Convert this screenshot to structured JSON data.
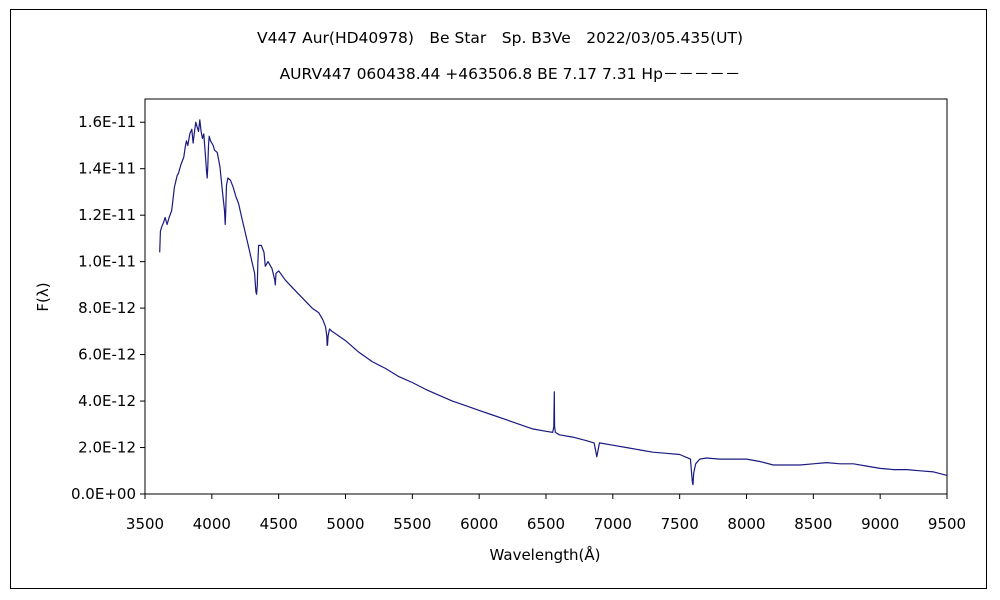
{
  "chart_data": {
    "type": "line",
    "title": "V447 Aur(HD40978)　Be Star　Sp. B3Ve　2022/03/05.435(UT)",
    "subtitle": "AURV447 060438.44 +463506.8 BE 7.17 7.31 Hp－－－－－",
    "xlabel": "Wavelength(Å)",
    "ylabel": "F(λ)",
    "xlim": [
      3500,
      9500
    ],
    "ylim": [
      0,
      1.7e-11
    ],
    "x_ticks": [
      3500,
      4000,
      4500,
      5000,
      5500,
      6000,
      6500,
      7000,
      7500,
      8000,
      8500,
      9000,
      9500
    ],
    "x_tick_labels": [
      "3500",
      "4000",
      "4500",
      "5000",
      "5500",
      "6000",
      "6500",
      "7000",
      "7500",
      "8000",
      "8500",
      "9000",
      "9500"
    ],
    "y_ticks": [
      0,
      2e-12,
      4e-12,
      6e-12,
      8e-12,
      1e-11,
      1.2e-11,
      1.4e-11,
      1.6e-11
    ],
    "y_tick_labels": [
      "0.0E+00",
      "2.0E-12",
      "4.0E-12",
      "6.0E-12",
      "8.0E-12",
      "1.0E-11",
      "1.2E-11",
      "1.4E-11",
      "1.6E-11"
    ],
    "grid": false,
    "legend": "none",
    "line_color": "#1a1a80",
    "series": [
      {
        "x": [
          3610,
          3615,
          3625,
          3640,
          3650,
          3665,
          3680,
          3700,
          3720,
          3740,
          3750,
          3770,
          3790,
          3800,
          3810,
          3820,
          3835,
          3850,
          3860,
          3870,
          3880,
          3890,
          3900,
          3910,
          3920,
          3930,
          3940,
          3950,
          3960,
          3965,
          3970,
          3975,
          3980,
          3990,
          4000,
          4010,
          4020,
          4040,
          4060,
          4080,
          4095,
          4100,
          4103,
          4110,
          4120,
          4140,
          4160,
          4180,
          4200,
          4220,
          4240,
          4260,
          4280,
          4300,
          4320,
          4330,
          4335,
          4340,
          4345,
          4350,
          4370,
          4390,
          4400,
          4420,
          4450,
          4471,
          4475,
          4480,
          4500,
          4550,
          4600,
          4650,
          4700,
          4750,
          4800,
          4830,
          4850,
          4860,
          4862,
          4865,
          4870,
          4880,
          4900,
          4950,
          5000,
          5100,
          5200,
          5300,
          5400,
          5500,
          5600,
          5700,
          5800,
          5900,
          6000,
          6100,
          6200,
          6300,
          6400,
          6500,
          6550,
          6558,
          6562,
          6564,
          6570,
          6600,
          6700,
          6800,
          6860,
          6870,
          6880,
          6890,
          6900,
          7000,
          7100,
          7200,
          7300,
          7400,
          7500,
          7580,
          7595,
          7600,
          7605,
          7620,
          7650,
          7700,
          7800,
          7900,
          8000,
          8100,
          8200,
          8300,
          8400,
          8500,
          8600,
          8700,
          8800,
          8900,
          9000,
          9100,
          9200,
          9300,
          9400,
          9500
        ],
        "y": [
          1.04e-11,
          1.13e-11,
          1.15e-11,
          1.17e-11,
          1.19e-11,
          1.16e-11,
          1.19e-11,
          1.22e-11,
          1.32e-11,
          1.37e-11,
          1.38e-11,
          1.42e-11,
          1.45e-11,
          1.49e-11,
          1.52e-11,
          1.5e-11,
          1.55e-11,
          1.57e-11,
          1.51e-11,
          1.56e-11,
          1.6e-11,
          1.58e-11,
          1.56e-11,
          1.61e-11,
          1.56e-11,
          1.53e-11,
          1.55e-11,
          1.47e-11,
          1.39e-11,
          1.36e-11,
          1.41e-11,
          1.5e-11,
          1.54e-11,
          1.52e-11,
          1.51e-11,
          1.5e-11,
          1.48e-11,
          1.47e-11,
          1.41e-11,
          1.3e-11,
          1.22e-11,
          1.16e-11,
          1.2e-11,
          1.33e-11,
          1.36e-11,
          1.35e-11,
          1.32e-11,
          1.28e-11,
          1.25e-11,
          1.2e-11,
          1.15e-11,
          1.1e-11,
          1.05e-11,
          1e-11,
          9.5e-12,
          8.7e-12,
          8.6e-12,
          9e-12,
          1e-11,
          1.07e-11,
          1.07e-11,
          1.04e-11,
          9.8e-12,
          1e-11,
          9.7e-12,
          9.2e-12,
          9e-12,
          9.5e-12,
          9.6e-12,
          9.2e-12,
          8.9e-12,
          8.6e-12,
          8.3e-12,
          8e-12,
          7.8e-12,
          7.5e-12,
          7.2e-12,
          6.8e-12,
          6.4e-12,
          6.4e-12,
          6.8e-12,
          7.1e-12,
          7e-12,
          6.8e-12,
          6.6e-12,
          6.1e-12,
          5.7e-12,
          5.4e-12,
          5.05e-12,
          4.8e-12,
          4.5e-12,
          4.25e-12,
          4e-12,
          3.8e-12,
          3.6e-12,
          3.4e-12,
          3.2e-12,
          3e-12,
          2.8e-12,
          2.7e-12,
          2.65e-12,
          2.9e-12,
          4.4e-12,
          2.9e-12,
          2.65e-12,
          2.55e-12,
          2.45e-12,
          2.3e-12,
          2.2e-12,
          1.9e-12,
          1.6e-12,
          1.9e-12,
          2.2e-12,
          2.1e-12,
          2e-12,
          1.9e-12,
          1.8e-12,
          1.75e-12,
          1.7e-12,
          1.5e-12,
          5e-13,
          4e-13,
          9e-13,
          1.3e-12,
          1.5e-12,
          1.55e-12,
          1.5e-12,
          1.5e-12,
          1.5e-12,
          1.4e-12,
          1.25e-12,
          1.25e-12,
          1.25e-12,
          1.3e-12,
          1.35e-12,
          1.3e-12,
          1.3e-12,
          1.2e-12,
          1.1e-12,
          1.05e-12,
          1.05e-12,
          1e-12,
          9.5e-13,
          8e-13
        ]
      }
    ]
  }
}
